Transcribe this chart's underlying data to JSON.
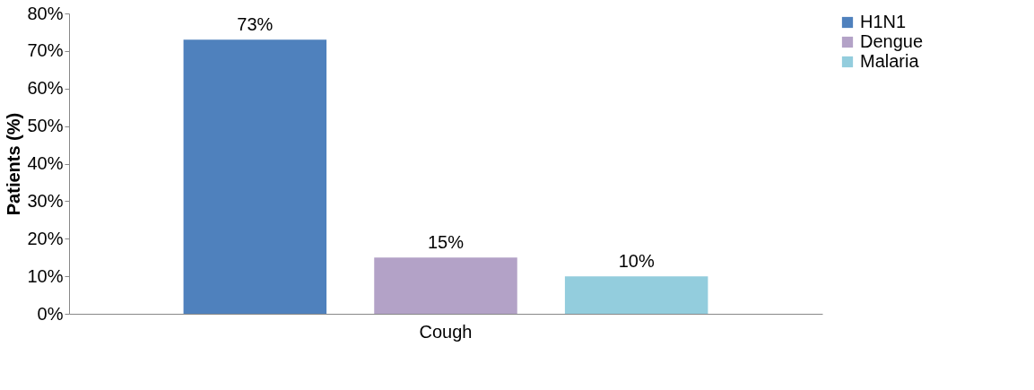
{
  "chart_data": {
    "type": "bar",
    "ylabel": "Patients (%)",
    "categories": [
      "Cough"
    ],
    "series": [
      {
        "name": "H1N1",
        "color": "#4f81bd",
        "values": [
          73
        ],
        "value_labels": [
          "73%"
        ]
      },
      {
        "name": "Dengue",
        "color": "#b3a2c7",
        "values": [
          15
        ],
        "value_labels": [
          "15%"
        ]
      },
      {
        "name": "Malaria",
        "color": "#93cddd",
        "values": [
          10
        ],
        "value_labels": [
          "10%"
        ]
      }
    ],
    "ylim": [
      0,
      80
    ],
    "yticks": [
      {
        "value": 0,
        "label": "0%"
      },
      {
        "value": 10,
        "label": "10%"
      },
      {
        "value": 20,
        "label": "20%"
      },
      {
        "value": 30,
        "label": "30%"
      },
      {
        "value": 40,
        "label": "40%"
      },
      {
        "value": 50,
        "label": "50%"
      },
      {
        "value": 60,
        "label": "60%"
      },
      {
        "value": 70,
        "label": "70%"
      },
      {
        "value": 80,
        "label": "80%"
      }
    ],
    "grid": false,
    "legend": "right"
  }
}
